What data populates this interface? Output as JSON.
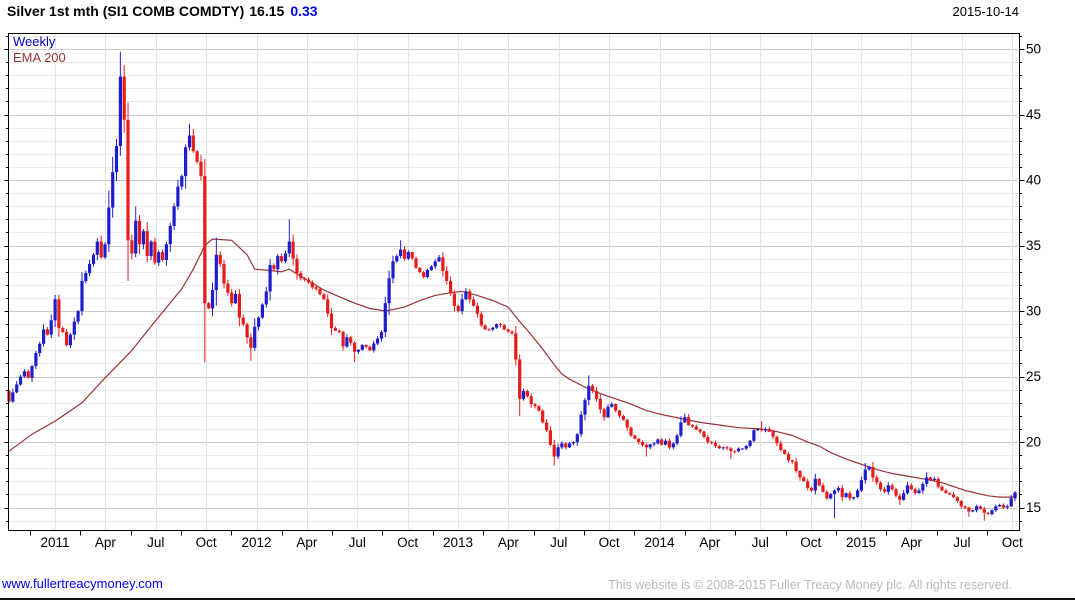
{
  "header": {
    "title": "Silver 1st mth (SI1 COMB COMDTY)",
    "last_price": "16.15",
    "change": "0.33",
    "date": "2015-10-14"
  },
  "legend": {
    "timeframe": "Weekly",
    "overlay": "EMA 200"
  },
  "axes": {
    "y_ticks": [
      50,
      45,
      40,
      35,
      30,
      25,
      20,
      15
    ],
    "x_labels": [
      "2011",
      "Apr",
      "Jul",
      "Oct",
      "2012",
      "Apr",
      "Jul",
      "Oct",
      "2013",
      "Apr",
      "Jul",
      "Oct",
      "2014",
      "Apr",
      "Jul",
      "Oct",
      "2015",
      "Apr",
      "Jul",
      "Oct"
    ]
  },
  "footer": {
    "site_link": "www.fullertreacymoney.com",
    "copyright": "This website is © 2008-2015 Fuller Treacy Money plc. All rights reserved."
  },
  "colors": {
    "up": "#1d1dcb",
    "down": "#e51c1c",
    "ema": "#993333",
    "change_text": "#0000ee",
    "legend_timeframe": "#0000cc",
    "link": "#0000ee",
    "copyright_text": "#b9b9b9",
    "grid_minor": "#ececec",
    "grid_major": "#c9c9c9",
    "grid_vertical": "#e4e4e4",
    "axis": "#000000"
  },
  "chart_data": {
    "type": "candlestick",
    "title": "Silver 1st mth (SI1 COMB COMDTY)",
    "timeframe": "Weekly",
    "overlay": "EMA 200",
    "last": {
      "price": 16.15,
      "change": 0.33,
      "date": "2015-10-14"
    },
    "x_range": [
      "2010-10",
      "2015-10-14"
    ],
    "y_range": [
      13.25,
      51.2
    ],
    "y_major_step": 5,
    "y_minor_step": 1,
    "grid": true,
    "legend_position": "top-left",
    "weeks_total": 262,
    "weekly_close_anchors": [
      [
        0,
        23.1
      ],
      [
        1,
        23.8
      ],
      [
        2,
        24.4
      ],
      [
        3,
        25.0
      ],
      [
        4,
        25.4
      ],
      [
        5,
        24.9
      ],
      [
        6,
        25.8
      ],
      [
        7,
        26.8
      ],
      [
        8,
        27.5
      ],
      [
        9,
        28.6
      ],
      [
        10,
        28.2
      ],
      [
        11,
        29.3
      ],
      [
        12,
        30.9
      ],
      [
        13,
        28.7
      ],
      [
        14,
        28.4
      ],
      [
        15,
        27.4
      ],
      [
        16,
        28.2
      ],
      [
        17,
        29.2
      ],
      [
        18,
        30.0
      ],
      [
        19,
        32.3
      ],
      [
        20,
        32.9
      ],
      [
        21,
        33.6
      ],
      [
        22,
        34.3
      ],
      [
        23,
        35.3
      ],
      [
        24,
        34.1
      ],
      [
        25,
        35.1
      ],
      [
        26,
        37.9
      ],
      [
        27,
        40.6
      ],
      [
        28,
        42.6
      ],
      [
        29,
        47.9
      ],
      [
        30,
        44.6
      ],
      [
        31,
        35.4
      ],
      [
        32,
        34.4
      ],
      [
        33,
        36.9
      ],
      [
        34,
        35.1
      ],
      [
        35,
        36.1
      ],
      [
        36,
        34.2
      ],
      [
        37,
        35.3
      ],
      [
        38,
        33.7
      ],
      [
        39,
        34.5
      ],
      [
        40,
        33.9
      ],
      [
        41,
        35.1
      ],
      [
        42,
        36.5
      ],
      [
        43,
        38.0
      ],
      [
        44,
        39.5
      ],
      [
        45,
        40.3
      ],
      [
        46,
        42.5
      ],
      [
        47,
        43.4
      ],
      [
        48,
        42.2
      ],
      [
        49,
        41.4
      ],
      [
        50,
        40.3
      ],
      [
        51,
        30.6
      ],
      [
        52,
        30.2
      ],
      [
        53,
        31.6
      ],
      [
        54,
        34.3
      ],
      [
        55,
        33.6
      ],
      [
        56,
        32.1
      ],
      [
        57,
        31.4
      ],
      [
        58,
        30.6
      ],
      [
        59,
        31.3
      ],
      [
        60,
        29.5
      ],
      [
        61,
        29.0
      ],
      [
        62,
        28.0
      ],
      [
        63,
        27.2
      ],
      [
        64,
        28.8
      ],
      [
        65,
        29.5
      ],
      [
        66,
        30.5
      ],
      [
        67,
        31.5
      ],
      [
        68,
        33.5
      ],
      [
        69,
        33.2
      ],
      [
        70,
        34.2
      ],
      [
        71,
        33.8
      ],
      [
        72,
        34.4
      ],
      [
        73,
        35.3
      ],
      [
        74,
        34.0
      ],
      [
        75,
        32.9
      ],
      [
        76,
        32.5
      ],
      [
        78,
        32.2
      ],
      [
        80,
        31.7
      ],
      [
        82,
        30.9
      ],
      [
        83,
        29.8
      ],
      [
        84,
        28.7
      ],
      [
        86,
        28.4
      ],
      [
        87,
        27.3
      ],
      [
        88,
        28.0
      ],
      [
        90,
        26.9
      ],
      [
        92,
        27.4
      ],
      [
        94,
        27.0
      ],
      [
        96,
        27.9
      ],
      [
        97,
        28.4
      ],
      [
        98,
        30.6
      ],
      [
        99,
        32.5
      ],
      [
        100,
        33.8
      ],
      [
        101,
        34.2
      ],
      [
        102,
        34.7
      ],
      [
        103,
        34.0
      ],
      [
        104,
        34.5
      ],
      [
        106,
        33.3
      ],
      [
        108,
        32.6
      ],
      [
        110,
        33.4
      ],
      [
        112,
        34.1
      ],
      [
        114,
        32.3
      ],
      [
        116,
        30.4
      ],
      [
        117,
        30.0
      ],
      [
        118,
        30.9
      ],
      [
        119,
        31.5
      ],
      [
        121,
        30.4
      ],
      [
        123,
        28.9
      ],
      [
        125,
        28.6
      ],
      [
        127,
        29.0
      ],
      [
        129,
        28.6
      ],
      [
        131,
        28.3
      ],
      [
        132,
        26.3
      ],
      [
        133,
        23.3
      ],
      [
        134,
        23.9
      ],
      [
        136,
        22.9
      ],
      [
        138,
        22.4
      ],
      [
        139,
        21.5
      ],
      [
        140,
        20.9
      ],
      [
        141,
        19.8
      ],
      [
        142,
        18.9
      ],
      [
        143,
        19.6
      ],
      [
        144,
        19.9
      ],
      [
        145,
        19.6
      ],
      [
        147,
        20.0
      ],
      [
        148,
        20.6
      ],
      [
        149,
        22.1
      ],
      [
        150,
        23.2
      ],
      [
        151,
        24.3
      ],
      [
        152,
        23.9
      ],
      [
        153,
        23.3
      ],
      [
        154,
        22.5
      ],
      [
        155,
        21.9
      ],
      [
        156,
        22.7
      ],
      [
        157,
        22.9
      ],
      [
        158,
        22.4
      ],
      [
        160,
        21.7
      ],
      [
        162,
        20.5
      ],
      [
        164,
        20.0
      ],
      [
        166,
        19.6
      ],
      [
        168,
        19.9
      ],
      [
        169,
        20.2
      ],
      [
        170,
        19.8
      ],
      [
        171,
        20.1
      ],
      [
        172,
        19.6
      ],
      [
        173,
        19.9
      ],
      [
        174,
        20.5
      ],
      [
        175,
        21.5
      ],
      [
        176,
        21.9
      ],
      [
        177,
        21.3
      ],
      [
        178,
        21.2
      ],
      [
        180,
        20.8
      ],
      [
        182,
        20.0
      ],
      [
        184,
        19.7
      ],
      [
        186,
        19.6
      ],
      [
        188,
        19.3
      ],
      [
        190,
        19.5
      ],
      [
        192,
        19.7
      ],
      [
        193,
        20.1
      ],
      [
        194,
        20.9
      ],
      [
        195,
        21.0
      ],
      [
        196,
        20.9
      ],
      [
        197,
        21.0
      ],
      [
        198,
        20.8
      ],
      [
        199,
        20.4
      ],
      [
        200,
        19.9
      ],
      [
        201,
        19.4
      ],
      [
        202,
        19.1
      ],
      [
        203,
        18.6
      ],
      [
        204,
        18.5
      ],
      [
        205,
        17.8
      ],
      [
        206,
        17.3
      ],
      [
        207,
        17.0
      ],
      [
        208,
        16.5
      ],
      [
        209,
        16.3
      ],
      [
        210,
        17.2
      ],
      [
        211,
        16.7
      ],
      [
        212,
        16.2
      ],
      [
        213,
        15.7
      ],
      [
        215,
        16.3
      ],
      [
        216,
        16.5
      ],
      [
        217,
        15.8
      ],
      [
        218,
        16.1
      ],
      [
        219,
        15.7
      ],
      [
        220,
        15.8
      ],
      [
        221,
        16.3
      ],
      [
        222,
        17.1
      ],
      [
        223,
        17.9
      ],
      [
        224,
        18.1
      ],
      [
        225,
        17.3
      ],
      [
        226,
        16.9
      ],
      [
        227,
        16.4
      ],
      [
        228,
        16.2
      ],
      [
        229,
        16.7
      ],
      [
        230,
        16.4
      ],
      [
        231,
        15.9
      ],
      [
        232,
        15.6
      ],
      [
        233,
        16.1
      ],
      [
        234,
        16.7
      ],
      [
        235,
        16.4
      ],
      [
        236,
        16.1
      ],
      [
        237,
        16.3
      ],
      [
        238,
        16.8
      ],
      [
        239,
        17.3
      ],
      [
        240,
        17.1
      ],
      [
        241,
        17.2
      ],
      [
        242,
        16.6
      ],
      [
        243,
        16.3
      ],
      [
        244,
        16.1
      ],
      [
        245,
        16.0
      ],
      [
        246,
        15.8
      ],
      [
        247,
        15.5
      ],
      [
        248,
        15.1
      ],
      [
        249,
        15.0
      ],
      [
        250,
        14.7
      ],
      [
        251,
        14.8
      ],
      [
        252,
        15.1
      ],
      [
        253,
        14.9
      ],
      [
        254,
        14.6
      ],
      [
        255,
        14.5
      ],
      [
        256,
        14.8
      ],
      [
        257,
        15.1
      ],
      [
        258,
        15.2
      ],
      [
        259,
        15.0
      ],
      [
        260,
        15.1
      ],
      [
        261,
        15.7
      ],
      [
        262,
        16.15
      ]
    ],
    "wick_extremes": {
      "29": {
        "hi": 49.8
      },
      "31": {
        "lo": 32.3
      },
      "47": {
        "hi": 44.3
      },
      "51": {
        "lo": 26.1
      },
      "54": {
        "hi": 35.3
      },
      "63": {
        "lo": 26.2
      },
      "73": {
        "hi": 37.0
      },
      "90": {
        "lo": 26.1
      },
      "102": {
        "hi": 35.4
      },
      "133": {
        "lo": 22.0
      },
      "142": {
        "lo": 18.2
      },
      "151": {
        "hi": 25.1
      },
      "166": {
        "lo": 18.9
      },
      "176": {
        "hi": 22.2
      },
      "188": {
        "lo": 18.7
      },
      "196": {
        "hi": 21.6
      },
      "215": {
        "lo": 14.2
      },
      "223": {
        "hi": 18.4
      },
      "232": {
        "lo": 15.2
      },
      "239": {
        "hi": 17.7
      },
      "250": {
        "lo": 14.3
      },
      "254": {
        "lo": 14.0
      }
    },
    "ema200": [
      [
        0,
        19.3
      ],
      [
        6,
        20.6
      ],
      [
        12,
        21.6
      ],
      [
        19,
        23.0
      ],
      [
        25,
        24.9
      ],
      [
        32,
        27.0
      ],
      [
        38,
        29.2
      ],
      [
        45,
        31.7
      ],
      [
        48,
        33.2
      ],
      [
        51,
        35.0
      ],
      [
        53,
        35.5
      ],
      [
        58,
        35.4
      ],
      [
        62,
        34.3
      ],
      [
        64,
        33.2
      ],
      [
        68,
        33.1
      ],
      [
        71,
        33.0
      ],
      [
        73,
        33.2
      ],
      [
        78,
        32.3
      ],
      [
        82,
        31.6
      ],
      [
        86,
        31.1
      ],
      [
        90,
        30.6
      ],
      [
        94,
        30.2
      ],
      [
        98,
        30.0
      ],
      [
        103,
        30.3
      ],
      [
        107,
        30.8
      ],
      [
        111,
        31.2
      ],
      [
        115,
        31.4
      ],
      [
        118,
        31.5
      ],
      [
        122,
        31.2
      ],
      [
        126,
        30.8
      ],
      [
        130,
        30.3
      ],
      [
        133,
        29.2
      ],
      [
        136,
        28.2
      ],
      [
        139,
        27.1
      ],
      [
        142,
        25.9
      ],
      [
        144,
        25.2
      ],
      [
        146,
        24.8
      ],
      [
        150,
        24.2
      ],
      [
        154,
        23.7
      ],
      [
        158,
        23.3
      ],
      [
        162,
        22.9
      ],
      [
        166,
        22.4
      ],
      [
        170,
        22.1
      ],
      [
        175,
        21.8
      ],
      [
        180,
        21.5
      ],
      [
        185,
        21.3
      ],
      [
        190,
        21.1
      ],
      [
        196,
        21.0
      ],
      [
        200,
        20.8
      ],
      [
        204,
        20.5
      ],
      [
        208,
        20.0
      ],
      [
        211,
        19.7
      ],
      [
        214,
        19.2
      ],
      [
        218,
        18.7
      ],
      [
        221,
        18.4
      ],
      [
        226,
        17.9
      ],
      [
        230,
        17.6
      ],
      [
        234,
        17.4
      ],
      [
        238,
        17.2
      ],
      [
        240,
        17.1
      ],
      [
        243,
        16.9
      ],
      [
        246,
        16.6
      ],
      [
        249,
        16.3
      ],
      [
        252,
        16.1
      ],
      [
        255,
        15.9
      ],
      [
        258,
        15.8
      ],
      [
        262,
        15.8
      ]
    ]
  }
}
